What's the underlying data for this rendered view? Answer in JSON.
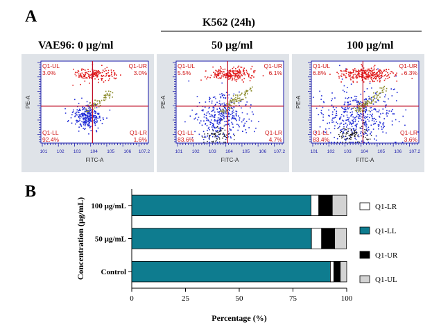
{
  "figure": {
    "panel_a_letter": "A",
    "panel_b_letter": "B",
    "panel_a_title": "K562 (24h)"
  },
  "flow_panels": [
    {
      "header": "VAE96:   0 µg/ml",
      "quadrants": {
        "UL": "Q1-UL",
        "UR": "Q1-UR",
        "LL": "Q1-LL",
        "LR": "Q1-LR"
      },
      "percent": {
        "UL": "3.0%",
        "UR": "3.0%",
        "LL": "92.4%",
        "LR": "1.6%"
      },
      "xlabel": "FITC-A",
      "ylabel": "PE-A",
      "ticks": [
        "10^1",
        "10^2",
        "10^3",
        "10^4",
        "10^5",
        "10^6",
        "10^7.2"
      ]
    },
    {
      "header": "50 µg/ml",
      "quadrants": {
        "UL": "Q1-UL",
        "UR": "Q1-UR",
        "LL": "Q1-LL",
        "LR": "Q1-LR"
      },
      "percent": {
        "UL": "5.5%",
        "UR": "6.1%",
        "LL": "83.6%",
        "LR": "4.7%"
      },
      "xlabel": "FITC-A",
      "ylabel": "PE-A",
      "ticks": [
        "10^1",
        "10^2",
        "10^3",
        "10^4",
        "10^5",
        "10^6",
        "10^7.2"
      ]
    },
    {
      "header": "100 µg/ml",
      "quadrants": {
        "UL": "Q1-UL",
        "UR": "Q1-UR",
        "LL": "Q1-LL",
        "LR": "Q1-LR"
      },
      "percent": {
        "UL": "6.8%",
        "UR": "6.3%",
        "LL": "83.4%",
        "LR": "3.6%"
      },
      "xlabel": "FITC-A",
      "ylabel": "PE-A",
      "ticks": [
        "10^1",
        "10^2",
        "10^3",
        "10^4",
        "10^5",
        "10^6",
        "10^7.2"
      ]
    }
  ],
  "chart_data": {
    "type": "bar",
    "orientation": "horizontal",
    "stacked": true,
    "categories": [
      "100 µg/mL",
      "50 µg/mL",
      "Control"
    ],
    "series": [
      {
        "name": "Q1-LL",
        "color": "#0e7c8f",
        "values": [
          83.4,
          83.6,
          92.4
        ]
      },
      {
        "name": "Q1-LR",
        "color": "#ffffff",
        "values": [
          3.6,
          4.7,
          1.6
        ]
      },
      {
        "name": "Q1-UR",
        "color": "#000000",
        "values": [
          6.3,
          6.1,
          3.0
        ]
      },
      {
        "name": "Q1-UL",
        "color": "#d3d3d3",
        "values": [
          6.8,
          5.5,
          3.0
        ]
      }
    ],
    "legend_order": [
      "Q1-LR",
      "Q1-LL",
      "Q1-UR",
      "Q1-UL"
    ],
    "legend_position": "right",
    "xlabel": "Percentage (%)",
    "ylabel": "Concentration (µg/mL)",
    "xlim": [
      0,
      100
    ],
    "xticks": [
      0,
      25,
      50,
      75,
      100
    ],
    "grid": false
  }
}
